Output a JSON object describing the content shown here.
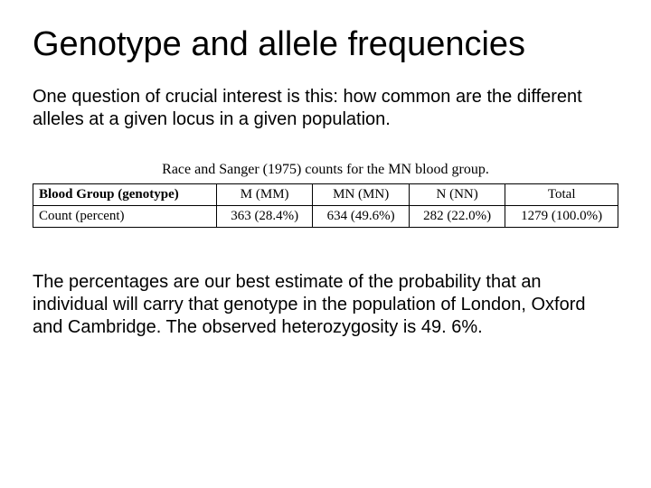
{
  "title": "Genotype and allele frequencies",
  "intro": "One question of crucial interest is this: how common are the different alleles at a given locus in a given population.",
  "table": {
    "caption": "Race and Sanger (1975) counts for the MN blood group.",
    "header_row_label": "Blood Group (genotype)",
    "count_row_label": "Count (percent)",
    "columns": [
      "M (MM)",
      "MN (MN)",
      "N (NN)",
      "Total"
    ],
    "counts": [
      "363 (28.4%)",
      "634 (49.6%)",
      "282 (22.0%)",
      "1279 (100.0%)"
    ],
    "border_color": "#000000",
    "font_family": "Georgia, Times New Roman, serif",
    "caption_fontsize": 16,
    "cell_fontsize": 15
  },
  "conclusion": "The percentages are our best estimate of the probability that an individual will carry that genotype in the population of London, Oxford and Cambridge. The observed heterozygosity is 49. 6%.",
  "colors": {
    "background": "#ffffff",
    "text": "#000000"
  },
  "typography": {
    "title_fontsize": 38,
    "body_fontsize": 20,
    "body_font": "Arial, Helvetica, sans-serif"
  }
}
